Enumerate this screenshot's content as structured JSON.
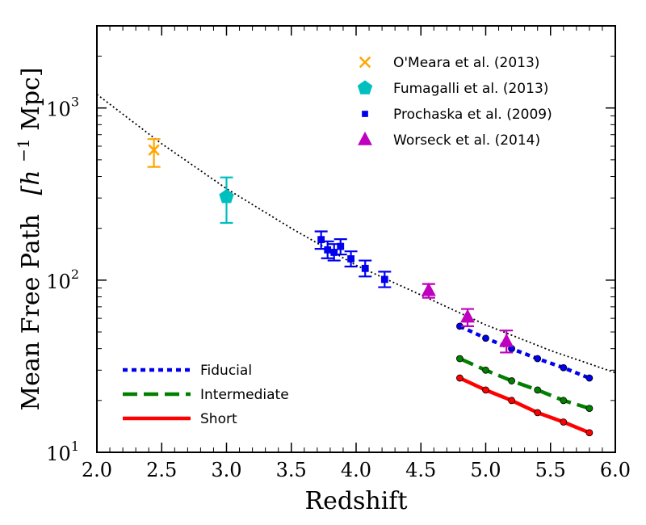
{
  "chart_data": {
    "type": "scatter",
    "xlabel": "Redshift",
    "ylabel_main": "Mean Free Path",
    "ylabel_unit": "[h",
    "ylabel_unit_sup": "−1",
    "ylabel_unit_tail": "Mpc]",
    "xlim": [
      2.0,
      6.0
    ],
    "ylim": [
      10,
      3000
    ],
    "yscale": "log",
    "x_ticks": [
      "2.0",
      "2.5",
      "3.0",
      "3.5",
      "4.0",
      "4.5",
      "5.0",
      "5.5",
      "6.0"
    ],
    "y_ticks": [
      {
        "value": 10,
        "base": "10",
        "exp": "1"
      },
      {
        "value": 100,
        "base": "10",
        "exp": "2"
      },
      {
        "value": 1000,
        "base": "10",
        "exp": "3"
      }
    ],
    "observations": [
      {
        "name": "O'Meara et al. (2013)",
        "marker": "x",
        "color": "#ffa500",
        "points": [
          {
            "x": 2.44,
            "y": 570,
            "ylo": 455,
            "yhi": 660
          }
        ]
      },
      {
        "name": "Fumagalli et al. (2013)",
        "marker": "pentagon",
        "color": "#00bfbf",
        "points": [
          {
            "x": 3.0,
            "y": 305,
            "ylo": 215,
            "yhi": 395
          }
        ]
      },
      {
        "name": "Prochaska et al. (2009)",
        "marker": "square",
        "color": "#0000ee",
        "points": [
          {
            "x": 3.73,
            "y": 172,
            "ylo": 152,
            "yhi": 192
          },
          {
            "x": 3.78,
            "y": 150,
            "ylo": 134,
            "yhi": 168
          },
          {
            "x": 3.83,
            "y": 145,
            "ylo": 130,
            "yhi": 162
          },
          {
            "x": 3.88,
            "y": 157,
            "ylo": 141,
            "yhi": 173
          },
          {
            "x": 3.96,
            "y": 133,
            "ylo": 120,
            "yhi": 147
          },
          {
            "x": 4.07,
            "y": 117,
            "ylo": 105,
            "yhi": 130
          },
          {
            "x": 4.22,
            "y": 101,
            "ylo": 91,
            "yhi": 112
          }
        ]
      },
      {
        "name": "Worseck et al. (2014)",
        "marker": "triangle",
        "color": "#bf00bf",
        "points": [
          {
            "x": 4.56,
            "y": 87,
            "ylo": 79,
            "yhi": 95
          },
          {
            "x": 4.86,
            "y": 61,
            "ylo": 54,
            "yhi": 68
          },
          {
            "x": 5.16,
            "y": 44,
            "ylo": 38,
            "yhi": 51
          }
        ]
      }
    ],
    "fit_curve": {
      "style": "dotted",
      "color": "#000000",
      "x": [
        2.0,
        2.5,
        3.0,
        3.5,
        4.0,
        4.5,
        5.0,
        5.5,
        6.0
      ],
      "y": [
        1200,
        620,
        340,
        200,
        122,
        82,
        55,
        39,
        29
      ]
    },
    "models": [
      {
        "name": "Fiducial",
        "style": "dotted",
        "color": "#0000ee",
        "x": [
          4.8,
          5.0,
          5.2,
          5.4,
          5.6,
          5.8
        ],
        "y": [
          54,
          46,
          40,
          35,
          31,
          27
        ]
      },
      {
        "name": "Intermediate",
        "style": "dashed",
        "color": "#007f00",
        "x": [
          4.8,
          5.0,
          5.2,
          5.4,
          5.6,
          5.8
        ],
        "y": [
          35,
          30,
          26,
          23,
          20,
          18
        ]
      },
      {
        "name": "Short",
        "style": "solid",
        "color": "#ff0000",
        "x": [
          4.8,
          5.0,
          5.2,
          5.4,
          5.6,
          5.8
        ],
        "y": [
          27,
          23,
          20,
          17,
          15,
          13
        ]
      }
    ],
    "legend_observations_position": "top-right",
    "legend_models_position": "bottom-left",
    "grid": false
  }
}
